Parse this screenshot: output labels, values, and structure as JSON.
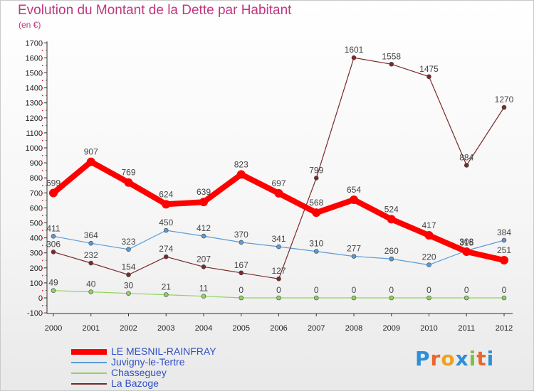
{
  "header": {
    "title": "Evolution du Montant de la Dette par Habitant",
    "subtitle": "(en €)"
  },
  "logo": {
    "letters": [
      "P",
      "r",
      "o",
      "x",
      "i",
      "t",
      "i"
    ],
    "colors": [
      "#2d8fd6",
      "#e9672e",
      "#f0a020",
      "#2d8fd6",
      "#7cc242",
      "#e9672e",
      "#2d8fd6"
    ]
  },
  "chart_data": {
    "type": "line",
    "title": "Evolution du Montant de la Dette par Habitant",
    "subtitle": "(en €)",
    "x": [
      "2000",
      "2001",
      "2002",
      "2003",
      "2004",
      "2005",
      "2006",
      "2007",
      "2008",
      "2009",
      "2010",
      "2011",
      "2012"
    ],
    "ylim": [
      -100,
      1700
    ],
    "yticks": [
      -100,
      0,
      100,
      200,
      300,
      400,
      500,
      600,
      700,
      800,
      900,
      1000,
      1100,
      1200,
      1300,
      1400,
      1500,
      1600,
      1700
    ],
    "grid": false,
    "legend_position": "bottom-left",
    "series": [
      {
        "name": "LE MESNIL-RAINFRAY",
        "color": "#ff0000",
        "values": [
          699,
          907,
          769,
          624,
          639,
          823,
          697,
          568,
          654,
          524,
          417,
          308,
          251
        ],
        "labels": [
          "699",
          "907",
          "769",
          "624",
          "639",
          "823",
          "697",
          "568",
          "654",
          "524",
          "417",
          "308",
          "251"
        ]
      },
      {
        "name": "Juvigny-le-Tertre",
        "color": "#5b9bd5",
        "values": [
          411,
          364,
          323,
          450,
          412,
          370,
          341,
          310,
          277,
          260,
          220,
          315,
          384
        ],
        "labels": [
          "411",
          "364",
          "323",
          "450",
          "412",
          "370",
          "341",
          "310",
          "277",
          "260",
          "220",
          "315",
          "384"
        ]
      },
      {
        "name": "Chasseguey",
        "color": "#8fd35f",
        "values": [
          49,
          40,
          30,
          21,
          11,
          0,
          0,
          0,
          0,
          0,
          0,
          0,
          0
        ],
        "labels": [
          "49",
          "40",
          "30",
          "21",
          "11",
          "0",
          "0",
          "0",
          "0",
          "0",
          "0",
          "0",
          "0"
        ]
      },
      {
        "name": "La Bazoge",
        "color": "#7a2a2a",
        "values": [
          306,
          232,
          154,
          274,
          207,
          167,
          127,
          799,
          1601,
          1558,
          1475,
          884,
          1270
        ],
        "labels": [
          "306",
          "232",
          "154",
          "274",
          "207",
          "167",
          "127",
          "799",
          "1601",
          "1558",
          "1475",
          "884",
          "1270"
        ]
      }
    ]
  }
}
